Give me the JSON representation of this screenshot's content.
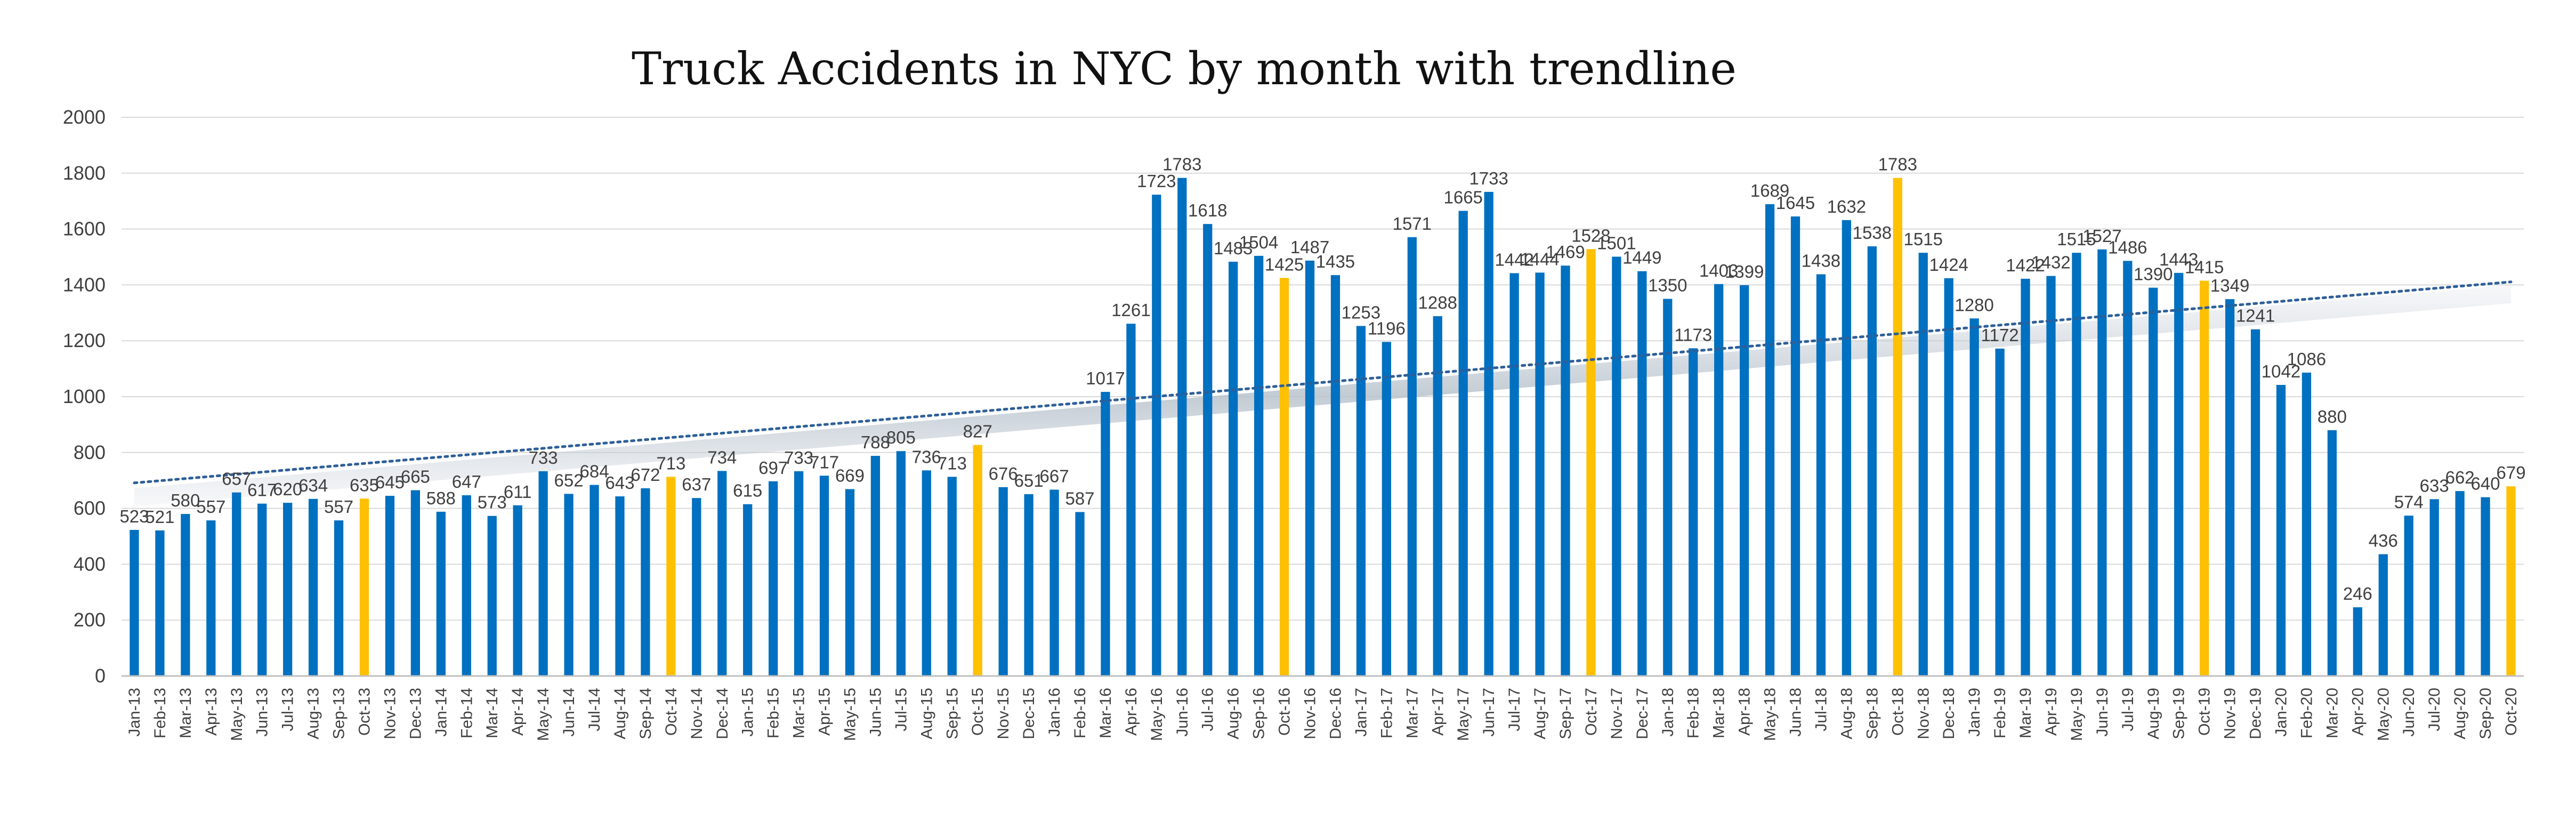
{
  "chart_data": {
    "type": "bar",
    "title": "Truck Accidents in NYC by month with trendline",
    "xlabel": "",
    "ylabel": "",
    "ylim": [
      0,
      2000
    ],
    "yticks": [
      0,
      200,
      400,
      600,
      800,
      1000,
      1200,
      1400,
      1600,
      1800,
      2000
    ],
    "grid": true,
    "legend": "none",
    "trendline": "linear, dotted",
    "colors": {
      "bar": "#0070C0",
      "highlight": "#FFC000",
      "trendline": "#2E5F99",
      "grid": "#D9D9D9",
      "axis": "#BFBFBF"
    },
    "highlighted_categories": [
      "Oct-13",
      "Oct-14",
      "Oct-15",
      "Oct-16",
      "Oct-17",
      "Oct-18",
      "Oct-19",
      "Oct-20"
    ],
    "categories": [
      "Jan-13",
      "Feb-13",
      "Mar-13",
      "Apr-13",
      "May-13",
      "Jun-13",
      "Jul-13",
      "Aug-13",
      "Sep-13",
      "Oct-13",
      "Nov-13",
      "Dec-13",
      "Jan-14",
      "Feb-14",
      "Mar-14",
      "Apr-14",
      "May-14",
      "Jun-14",
      "Jul-14",
      "Aug-14",
      "Sep-14",
      "Oct-14",
      "Nov-14",
      "Dec-14",
      "Jan-15",
      "Feb-15",
      "Mar-15",
      "Apr-15",
      "May-15",
      "Jun-15",
      "Jul-15",
      "Aug-15",
      "Sep-15",
      "Oct-15",
      "Nov-15",
      "Dec-15",
      "Jan-16",
      "Feb-16",
      "Mar-16",
      "Apr-16",
      "May-16",
      "Jun-16",
      "Jul-16",
      "Aug-16",
      "Sep-16",
      "Oct-16",
      "Nov-16",
      "Dec-16",
      "Jan-17",
      "Feb-17",
      "Mar-17",
      "Apr-17",
      "May-17",
      "Jun-17",
      "Jul-17",
      "Aug-17",
      "Sep-17",
      "Oct-17",
      "Nov-17",
      "Dec-17",
      "Jan-18",
      "Feb-18",
      "Mar-18",
      "Apr-18",
      "May-18",
      "Jun-18",
      "Jul-18",
      "Aug-18",
      "Sep-18",
      "Oct-18",
      "Nov-18",
      "Dec-18",
      "Jan-19",
      "Feb-19",
      "Mar-19",
      "Apr-19",
      "May-19",
      "Jun-19",
      "Jul-19",
      "Aug-19",
      "Sep-19",
      "Oct-19",
      "Nov-19",
      "Dec-19",
      "Jan-20",
      "Feb-20",
      "Mar-20",
      "Apr-20",
      "May-20",
      "Jun-20",
      "Jul-20",
      "Aug-20",
      "Sep-20",
      "Oct-20"
    ],
    "values": [
      523,
      521,
      580,
      557,
      657,
      617,
      620,
      634,
      557,
      635,
      645,
      665,
      588,
      647,
      573,
      611,
      733,
      652,
      684,
      643,
      672,
      713,
      637,
      734,
      615,
      697,
      733,
      717,
      669,
      788,
      805,
      736,
      713,
      827,
      676,
      651,
      667,
      587,
      1017,
      1261,
      1723,
      1783,
      1618,
      1483,
      1504,
      1425,
      1487,
      1435,
      1253,
      1196,
      1571,
      1288,
      1665,
      1733,
      1442,
      1444,
      1469,
      1528,
      1501,
      1449,
      1350,
      1173,
      1403,
      1399,
      1689,
      1645,
      1438,
      1632,
      1538,
      1783,
      1515,
      1424,
      1280,
      1172,
      1422,
      1432,
      1515,
      1527,
      1486,
      1390,
      1443,
      1415,
      1349,
      1241,
      1042,
      1086,
      880,
      246,
      436,
      574,
      633,
      662,
      640,
      679
    ]
  }
}
